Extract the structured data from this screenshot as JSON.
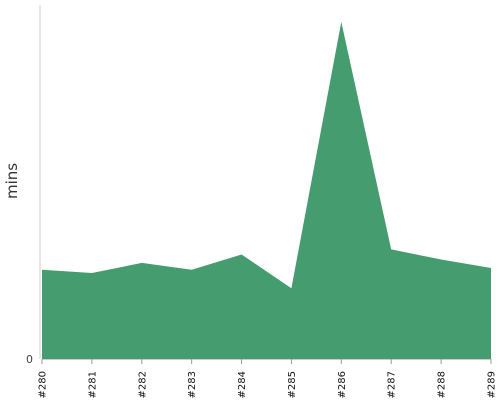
{
  "chart_data": {
    "type": "area",
    "ylabel": "mins",
    "y_tick_labels": [
      "0"
    ],
    "categories": [
      "#280",
      "#281",
      "#282",
      "#283",
      "#284",
      "#285",
      "#286",
      "#287",
      "#288",
      "#289"
    ],
    "values": [
      26.5,
      25.5,
      28.5,
      26.5,
      31.0,
      21.0,
      100.0,
      32.5,
      29.5,
      27.0
    ],
    "ylim": [
      0,
      105
    ],
    "colors": {
      "fill": "#459d6f",
      "axis": "#cccccc"
    },
    "grid": false,
    "legend": "none"
  }
}
